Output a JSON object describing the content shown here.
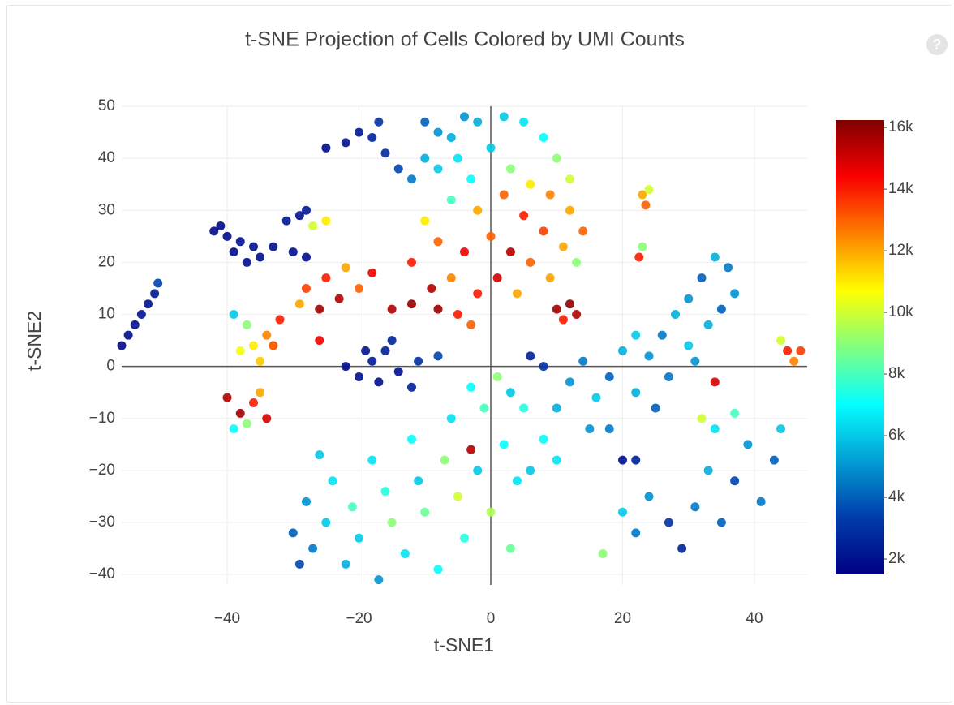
{
  "help_icon": "?",
  "chart_data": {
    "type": "scatter",
    "title": "t-SNE Projection of Cells Colored by UMI Counts",
    "xlabel": "t-SNE1",
    "ylabel": "t-SNE2",
    "xlim": [
      -56,
      48
    ],
    "ylim": [
      -42,
      50
    ],
    "xticks": [
      {
        "value": -40,
        "label": "−40"
      },
      {
        "value": -20,
        "label": "−20"
      },
      0,
      20,
      40
    ],
    "yticks": [
      {
        "value": -40,
        "label": "−40"
      },
      {
        "value": -30,
        "label": "−30"
      },
      {
        "value": -20,
        "label": "−20"
      },
      {
        "value": -10,
        "label": "−10"
      },
      0,
      10,
      20,
      30,
      40,
      50
    ],
    "grid": true,
    "zeroline": true,
    "colorlim": [
      1500,
      16240
    ],
    "colorticks": [
      {
        "value": 2000,
        "label": "2k"
      },
      {
        "value": 4000,
        "label": "4k"
      },
      {
        "value": 6000,
        "label": "6k"
      },
      {
        "value": 8000,
        "label": "8k"
      },
      {
        "value": 10000,
        "label": "10k"
      },
      {
        "value": 12000,
        "label": "12k"
      },
      {
        "value": 14000,
        "label": "14k"
      },
      {
        "value": 16000,
        "label": "16k"
      }
    ],
    "colorscale": [
      [
        0,
        "#000083"
      ],
      [
        0.125,
        "#003caa"
      ],
      [
        0.375,
        "#05ffff"
      ],
      [
        0.625,
        "#ffff00"
      ],
      [
        0.875,
        "#fa0000"
      ],
      [
        1,
        "#800000"
      ]
    ],
    "x": [
      -56,
      -55,
      -54,
      -53,
      -52,
      -51,
      -50.5,
      -42,
      -40,
      -39,
      -37,
      -36,
      -41,
      -38,
      -35,
      -33,
      -30,
      -28,
      -31,
      -29,
      -28,
      -25,
      -22,
      -20,
      -18,
      -16,
      -14,
      -12,
      -17,
      -10,
      -8,
      -6,
      -4,
      -2,
      2,
      5,
      8,
      10,
      12,
      -10,
      -8,
      -5,
      -3,
      0,
      3,
      6,
      9,
      12,
      14,
      13,
      -6,
      -2,
      2,
      5,
      8,
      11,
      -10,
      -8,
      -4,
      0,
      3,
      6,
      9,
      -12,
      -9,
      -6,
      -2,
      1,
      4,
      -15,
      -12,
      -8,
      -5,
      -3,
      -18,
      -20,
      -23,
      -26,
      -29,
      -32,
      -34,
      -36,
      -37,
      -38,
      -35,
      -33,
      -39,
      -25,
      -28,
      -22,
      -22,
      -20,
      -18,
      -16,
      -14,
      -12,
      -17,
      -15,
      -11,
      -8,
      -19,
      -40,
      -38,
      -36,
      -34,
      -35,
      -39,
      -37,
      -30,
      -28,
      -27,
      -25,
      -24,
      -22,
      -21,
      -20,
      -18,
      -17,
      -16,
      -15,
      -13,
      -12,
      -11,
      -10,
      -8,
      -7,
      -6,
      -5,
      -4,
      -2,
      -1,
      0,
      2,
      3,
      4,
      -3,
      1,
      -26,
      -29,
      6,
      8,
      10,
      12,
      14,
      16,
      18,
      20,
      22,
      8,
      5,
      10,
      15,
      18,
      6,
      3,
      24,
      26,
      28,
      30,
      32,
      34,
      36,
      37,
      35,
      33,
      30,
      27,
      31,
      22,
      25,
      20,
      22,
      24,
      27,
      29,
      31,
      33,
      34,
      35,
      37,
      39,
      41,
      43,
      44,
      32,
      37,
      10,
      12,
      13,
      11,
      23,
      23.5,
      24,
      22.5,
      23,
      45,
      46,
      47,
      44,
      34,
      22,
      20,
      -27,
      -25,
      -33,
      -26,
      17,
      -3
    ],
    "y": [
      4,
      6,
      8,
      10,
      12,
      14,
      16,
      26,
      25,
      22,
      20,
      23,
      27,
      24,
      21,
      23,
      22,
      21,
      28,
      29,
      30,
      42,
      43,
      45,
      44,
      41,
      38,
      36,
      47,
      47,
      45,
      44,
      48,
      47,
      48,
      47,
      44,
      40,
      36,
      40,
      38,
      40,
      36,
      42,
      38,
      35,
      33,
      30,
      26,
      20,
      32,
      30,
      33,
      29,
      26,
      23,
      28,
      24,
      22,
      25,
      22,
      20,
      17,
      20,
      15,
      17,
      14,
      17,
      14,
      11,
      12,
      11,
      10,
      8,
      18,
      15,
      13,
      11,
      12,
      9,
      6,
      4,
      8,
      3,
      1,
      4,
      10,
      17,
      15,
      19,
      0,
      -2,
      1,
      3,
      -1,
      -4,
      -3,
      5,
      1,
      2,
      3,
      -6,
      -9,
      -7,
      -10,
      -5,
      -12,
      -11,
      -32,
      -26,
      -35,
      -30,
      -22,
      -38,
      -27,
      -33,
      -18,
      -41,
      -24,
      -30,
      -36,
      -14,
      -22,
      -28,
      -39,
      -18,
      -10,
      -25,
      -33,
      -20,
      -8,
      -28,
      -15,
      -35,
      -22,
      -4,
      -2,
      -17,
      -38,
      -20,
      -14,
      -8,
      -3,
      1,
      -6,
      -2,
      3,
      6,
      0,
      -8,
      -18,
      -12,
      -12,
      2,
      -5,
      2,
      6,
      10,
      13,
      17,
      21,
      19,
      14,
      11,
      8,
      4,
      -2,
      1,
      -5,
      -8,
      -28,
      -32,
      -25,
      -30,
      -35,
      -27,
      -20,
      -12,
      -30,
      -22,
      -15,
      -26,
      -18,
      -12,
      -10,
      -9,
      11,
      12,
      10,
      9,
      33,
      31,
      34,
      21,
      23,
      3,
      1,
      3,
      5,
      -3,
      -18,
      -18,
      27,
      28,
      4,
      5,
      -36,
      -16
    ],
    "umi": [
      1800,
      1900,
      2000,
      2100,
      2000,
      2200,
      3500,
      1800,
      1900,
      1800,
      1900,
      2000,
      1800,
      2000,
      1900,
      2000,
      1900,
      2000,
      2200,
      2000,
      2300,
      1800,
      2000,
      2200,
      2500,
      2800,
      3500,
      4500,
      3000,
      4000,
      5000,
      5500,
      5000,
      5500,
      6000,
      6500,
      7000,
      9000,
      10000,
      5500,
      6000,
      6500,
      7000,
      6000,
      9000,
      11000,
      12500,
      12000,
      13000,
      9000,
      8000,
      12000,
      13000,
      14000,
      13500,
      12000,
      11000,
      13000,
      14500,
      13000,
      15500,
      13000,
      12000,
      14000,
      15500,
      12500,
      14000,
      15000,
      12000,
      15500,
      16000,
      15800,
      14000,
      13000,
      14500,
      13000,
      15500,
      15800,
      12000,
      14000,
      12500,
      11000,
      9000,
      10500,
      11500,
      13000,
      6000,
      14000,
      13500,
      12000,
      1800,
      2000,
      2200,
      2500,
      2000,
      2500,
      1900,
      2600,
      3000,
      3500,
      2100,
      15500,
      15800,
      14000,
      15000,
      12000,
      7000,
      9000,
      4000,
      5000,
      4500,
      6000,
      6500,
      5500,
      8000,
      6000,
      6500,
      5000,
      7500,
      9000,
      6500,
      7000,
      6000,
      8500,
      7000,
      9000,
      6500,
      10000,
      7500,
      6000,
      8000,
      9500,
      7000,
      8500,
      6500,
      7000,
      9000,
      6000,
      3500,
      6000,
      7000,
      5500,
      5000,
      4500,
      6000,
      4000,
      5500,
      6000,
      3000,
      7500,
      6500,
      5000,
      4500,
      2500,
      6000,
      5000,
      4500,
      5500,
      5000,
      4000,
      5500,
      4500,
      5000,
      4000,
      5500,
      6000,
      4500,
      5000,
      5500,
      4000,
      6000,
      4500,
      5000,
      3000,
      2500,
      4500,
      5500,
      6500,
      4000,
      3500,
      5000,
      4500,
      4000,
      6000,
      10000,
      8000,
      15800,
      16000,
      15500,
      14000,
      12000,
      13000,
      10000,
      14000,
      9000,
      14000,
      12500,
      13500,
      10000,
      15000,
      2500,
      2000,
      10000,
      11000,
      13000,
      14500,
      9000,
      15500
    ]
  }
}
